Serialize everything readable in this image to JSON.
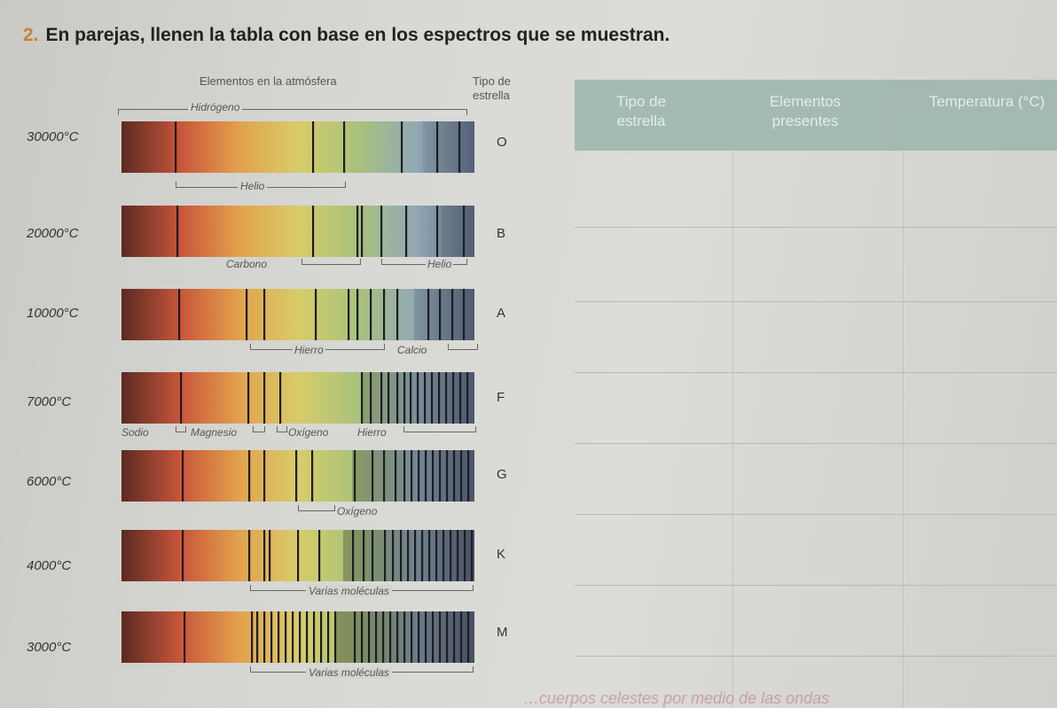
{
  "instruction": {
    "number": "2.",
    "text": "En parejas, llenen la tabla con base en los espectros que se muestran."
  },
  "headers": {
    "elements": "Elementos en la atmósfera",
    "type": "Tipo de estrella"
  },
  "table": {
    "col1": "Tipo de estrella",
    "col2": "Elementos presentes",
    "col3": "Temperatura (°C)"
  },
  "stars": [
    {
      "temp": "30000°C",
      "type": "O"
    },
    {
      "temp": "20000°C",
      "type": "B"
    },
    {
      "temp": "10000°C",
      "type": "A"
    },
    {
      "temp": "7000°C",
      "type": "F"
    },
    {
      "temp": "6000°C",
      "type": "G"
    },
    {
      "temp": "4000°C",
      "type": "K"
    },
    {
      "temp": "3000°C",
      "type": "M"
    }
  ],
  "labels": {
    "hidrogeno": "Hidrógeno",
    "helio": "Helio",
    "carbono": "Carbono",
    "helio2": "Helio",
    "hierro": "Hierro",
    "calcio": "Calcio",
    "sodio": "Sodio",
    "magnesio": "Magnesio",
    "oxigeno": "Oxígeno",
    "hierro2": "Hierro",
    "oxigeno2": "Oxígeno",
    "moleculas1": "Varias moléculas",
    "moleculas2": "Varias moléculas"
  },
  "bottom_text": "…cuerpos celestes por medio de las ondas",
  "spectrum_colors": [
    "#5a2a22",
    "#c8553a",
    "#e2a24c",
    "#d8cc6a",
    "#a9c27a",
    "#92a9b6",
    "#5a667e"
  ]
}
